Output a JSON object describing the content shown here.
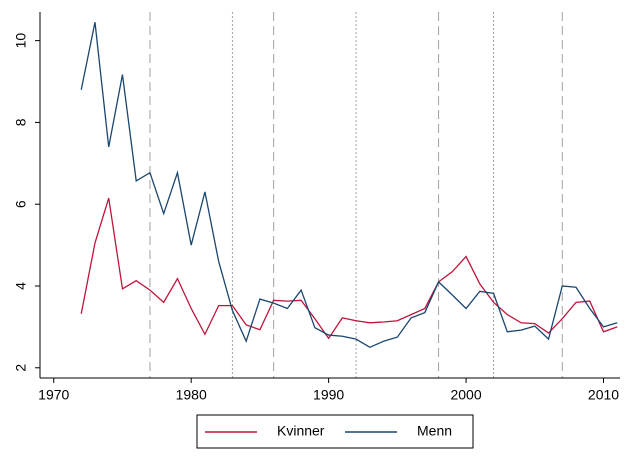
{
  "chart_data": {
    "type": "line",
    "x": [
      1972,
      1973,
      1974,
      1975,
      1976,
      1977,
      1978,
      1979,
      1980,
      1981,
      1982,
      1983,
      1984,
      1985,
      1986,
      1987,
      1988,
      1989,
      1990,
      1991,
      1992,
      1993,
      1994,
      1995,
      1996,
      1997,
      1998,
      1999,
      2000,
      2001,
      2002,
      2003,
      2004,
      2005,
      2006,
      2007,
      2008,
      2009,
      2010,
      2011
    ],
    "series": [
      {
        "name": "Kvinner",
        "color": "#c0143c",
        "values": [
          3.32,
          5.05,
          6.15,
          3.93,
          4.13,
          3.9,
          3.6,
          4.18,
          3.45,
          2.82,
          3.52,
          3.52,
          3.05,
          2.93,
          3.65,
          3.63,
          3.65,
          3.2,
          2.72,
          3.22,
          3.15,
          3.1,
          3.12,
          3.15,
          3.3,
          3.45,
          4.1,
          4.35,
          4.72,
          4.05,
          3.6,
          3.3,
          3.1,
          3.08,
          2.85,
          3.2,
          3.6,
          3.63,
          2.88,
          3.0
        ]
      },
      {
        "name": "Menn",
        "color": "#1a476f",
        "values": [
          8.8,
          10.45,
          7.4,
          9.17,
          6.57,
          6.77,
          5.77,
          6.77,
          5.0,
          6.3,
          4.6,
          3.4,
          2.65,
          3.68,
          3.58,
          3.45,
          3.9,
          2.98,
          2.8,
          2.77,
          2.7,
          2.5,
          2.65,
          2.75,
          3.22,
          3.35,
          4.1,
          3.78,
          3.45,
          3.87,
          3.82,
          2.88,
          2.92,
          3.02,
          2.7,
          4.0,
          3.97,
          3.45,
          3.0,
          3.1
        ]
      }
    ],
    "xlim": [
      1969,
      2011.2
    ],
    "xticks": [
      1970,
      1980,
      1990,
      2000,
      2010
    ],
    "ylim": [
      1.75,
      10.7
    ],
    "yticks": [
      2,
      4,
      6,
      8,
      10
    ],
    "reference_lines": [
      {
        "x": 1977,
        "style": "dashed"
      },
      {
        "x": 1983,
        "style": "dotted"
      },
      {
        "x": 1986,
        "style": "dashed"
      },
      {
        "x": 1992,
        "style": "dotted"
      },
      {
        "x": 1998,
        "style": "dashed"
      },
      {
        "x": 2002,
        "style": "dotted"
      },
      {
        "x": 2007,
        "style": "dashed"
      }
    ],
    "legend": "bottom"
  }
}
